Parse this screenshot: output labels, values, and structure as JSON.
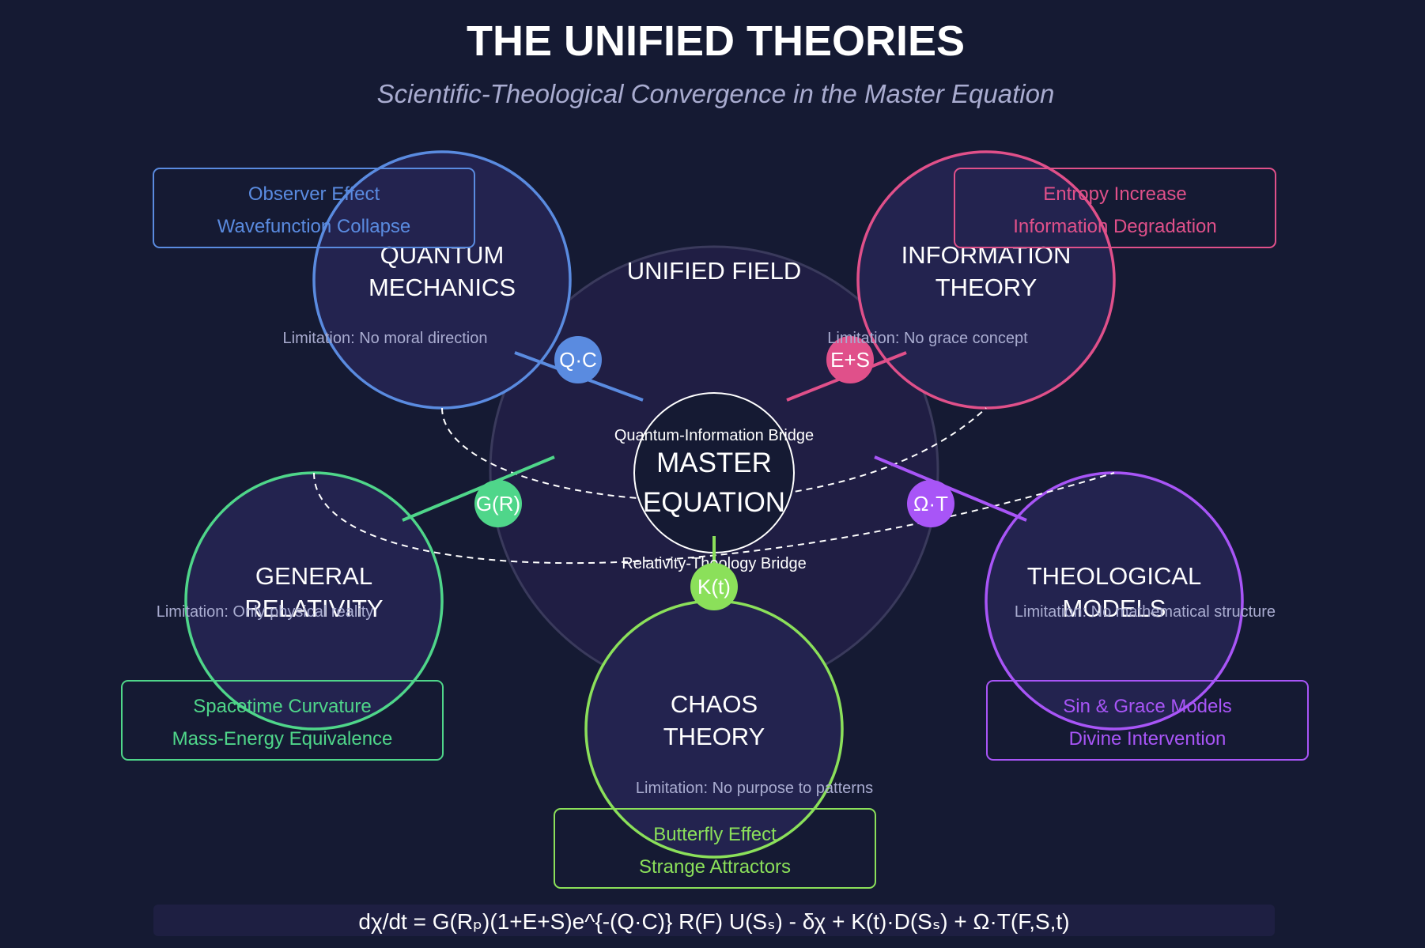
{
  "title": "THE UNIFIED THEORIES",
  "subtitle": "Scientific-Theological Convergence in the Master Equation",
  "unified_field_label": "UNIFIED FIELD",
  "master": {
    "line1": "MASTER",
    "line2": "EQUATION"
  },
  "bridges": {
    "quantum_information": "Quantum-Information Bridge",
    "relativity_theology": "Relativity-Theology Bridge"
  },
  "equation": "dχ/dt = G(Rₚ)(1+E+S)e^{-(Q·C)} R(F) U(Sₛ) - δχ + K(t)·D(Sₛ) + Ω·T(F,S,t)",
  "colors": {
    "background": "#151a33",
    "quantum": "#5a8be0",
    "information": "#e0508a",
    "relativity": "#4fd68a",
    "chaos": "#8be05a",
    "theology": "#a855f7"
  },
  "theories": {
    "quantum": {
      "line1": "QUANTUM",
      "line2": "MECHANICS",
      "limitation": "Limitation: No moral direction",
      "features": [
        "Observer Effect",
        "Wavefunction Collapse"
      ],
      "badge": "Q·C"
    },
    "information": {
      "line1": "INFORMATION",
      "line2": "THEORY",
      "limitation": "Limitation: No grace concept",
      "features": [
        "Entropy Increase",
        "Information Degradation"
      ],
      "badge": "E+S"
    },
    "relativity": {
      "line1": "GENERAL",
      "line2": "RELATIVITY",
      "limitation": "Limitation: Only physical reality",
      "features": [
        "Spacetime Curvature",
        "Mass-Energy Equivalence"
      ],
      "badge": "G(R)"
    },
    "chaos": {
      "line1": "CHAOS",
      "line2": "THEORY",
      "limitation": "Limitation: No purpose to patterns",
      "features": [
        "Butterfly Effect",
        "Strange Attractors"
      ],
      "badge": "K(t)"
    },
    "theology": {
      "line1": "THEOLOGICAL",
      "line2": "MODELS",
      "limitation": "Limitation: No mathematical structure",
      "features": [
        "Sin & Grace Models",
        "Divine Intervention"
      ],
      "badge": "Ω·T"
    }
  }
}
